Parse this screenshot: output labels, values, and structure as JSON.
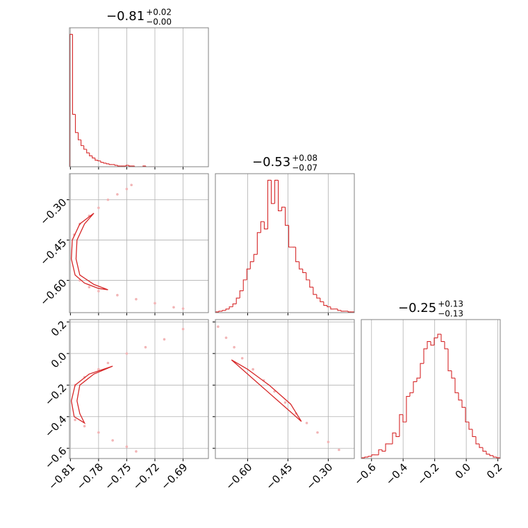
{
  "chart_data": {
    "type": "corner",
    "line_color": "#d62728",
    "point_color": "#f2b5b6",
    "frame_color": "#808080",
    "grid": true,
    "parameters": [
      {
        "title": {
          "value": "−0.81",
          "plus": "+0.02",
          "minus": "−0.00"
        },
        "lim": [
          -0.811,
          -0.663
        ],
        "ticks": [
          {
            "value": -0.81,
            "label": "−0.81"
          },
          {
            "value": -0.78,
            "label": "−0.78"
          },
          {
            "value": -0.75,
            "label": "−0.75"
          },
          {
            "value": -0.72,
            "label": "−0.72"
          },
          {
            "value": -0.69,
            "label": "−0.69"
          }
        ],
        "hist": {
          "ylim": [
            0,
            191
          ],
          "bins": [
            -0.8107,
            -0.8077,
            -0.8047,
            -0.8017,
            -0.7987,
            -0.7957,
            -0.7927,
            -0.7897,
            -0.7867,
            -0.7837,
            -0.7807,
            -0.7777,
            -0.7747,
            -0.7717,
            -0.7687,
            -0.7657,
            -0.7627,
            -0.7597,
            -0.7567,
            -0.7537,
            -0.7507,
            -0.7477,
            -0.7447,
            -0.7417,
            -0.7387,
            -0.7357,
            -0.7327,
            -0.7297,
            -0.7267,
            -0.7237,
            -0.7207
          ],
          "counts": [
            182,
            72,
            47,
            37,
            29,
            24,
            19,
            15,
            12,
            9,
            8,
            6,
            5,
            4,
            3,
            3,
            2,
            1,
            1,
            1,
            2,
            1,
            1,
            0,
            0,
            0,
            1,
            0,
            0,
            0
          ]
        }
      },
      {
        "title": {
          "value": "−0.53",
          "plus": "+0.08",
          "minus": "−0.07"
        },
        "lim": [
          -0.72,
          -0.203
        ],
        "ticks": [
          {
            "value": -0.6,
            "label": "−0.60"
          },
          {
            "value": -0.45,
            "label": "−0.45"
          },
          {
            "value": -0.3,
            "label": "−0.30"
          }
        ],
        "hist": {
          "ylim": [
            0,
            191
          ],
          "bins": [
            -0.72,
            -0.707,
            -0.694,
            -0.681,
            -0.668,
            -0.655,
            -0.642,
            -0.629,
            -0.616,
            -0.603,
            -0.59,
            -0.577,
            -0.564,
            -0.551,
            -0.538,
            -0.525,
            -0.512,
            -0.499,
            -0.486,
            -0.473,
            -0.46,
            -0.447,
            -0.434,
            -0.421,
            -0.408,
            -0.395,
            -0.382,
            -0.369,
            -0.356,
            -0.343,
            -0.33,
            -0.317,
            -0.304,
            -0.291,
            -0.278,
            -0.265,
            -0.252,
            -0.239,
            -0.226,
            -0.213,
            -0.2
          ],
          "counts": [
            1,
            2,
            3,
            5,
            8,
            12,
            20,
            30,
            45,
            60,
            70,
            80,
            110,
            125,
            115,
            182,
            150,
            182,
            140,
            145,
            120,
            90,
            90,
            70,
            60,
            55,
            45,
            35,
            25,
            20,
            15,
            10,
            8,
            5,
            5,
            3,
            2,
            2,
            1,
            1
          ]
        }
      },
      {
        "title": {
          "value": "−0.25",
          "plus": "+0.13",
          "minus": "−0.13"
        },
        "lim": [
          -0.665,
          0.215
        ],
        "ticks": [
          {
            "value": -0.6,
            "label": "−0.6"
          },
          {
            "value": -0.4,
            "label": "−0.4"
          },
          {
            "value": -0.2,
            "label": "−0.2"
          },
          {
            "value": 0,
            "label": "0.0"
          },
          0.2
        ],
        "hist": {
          "ylim": [
            0,
            190
          ],
          "bins": [
            -0.665,
            -0.643,
            -0.621,
            -0.599,
            -0.577,
            -0.555,
            -0.533,
            -0.511,
            -0.489,
            -0.467,
            -0.445,
            -0.423,
            -0.401,
            -0.379,
            -0.357,
            -0.335,
            -0.313,
            -0.291,
            -0.269,
            -0.247,
            -0.225,
            -0.203,
            -0.181,
            -0.159,
            -0.137,
            -0.115,
            -0.093,
            -0.071,
            -0.049,
            -0.027,
            -0.005,
            0.017,
            0.039,
            0.061,
            0.083,
            0.105,
            0.127,
            0.149,
            0.171,
            0.193,
            0.215
          ],
          "counts": [
            1,
            2,
            3,
            5,
            5,
            12,
            10,
            20,
            20,
            35,
            30,
            60,
            50,
            85,
            90,
            105,
            110,
            130,
            150,
            160,
            155,
            165,
            170,
            160,
            150,
            120,
            110,
            90,
            80,
            70,
            50,
            40,
            30,
            20,
            15,
            10,
            6,
            4,
            2,
            1
          ]
        }
      }
    ],
    "pairs": [
      {
        "x_param": 0,
        "y_param": 1,
        "x": [
          -0.806,
          -0.8,
          -0.79,
          -0.78,
          -0.77,
          -0.76,
          -0.75,
          -0.745,
          -0.8,
          -0.79,
          -0.78,
          -0.76,
          -0.74,
          -0.72,
          -0.7,
          -0.69
        ],
        "y": [
          -0.43,
          -0.39,
          -0.36,
          -0.33,
          -0.3,
          -0.28,
          -0.26,
          -0.245,
          -0.6,
          -0.625,
          -0.64,
          -0.655,
          -0.67,
          -0.685,
          -0.7,
          -0.705
        ],
        "contour_x": [
          -0.785,
          -0.8,
          -0.808,
          -0.809,
          -0.805,
          -0.795,
          -0.78,
          -0.77,
          -0.785,
          -0.8,
          -0.804,
          -0.803,
          -0.795,
          -0.785
        ],
        "contour_y": [
          -0.35,
          -0.39,
          -0.45,
          -0.52,
          -0.58,
          -0.61,
          -0.63,
          -0.635,
          -0.615,
          -0.58,
          -0.52,
          -0.45,
          -0.39,
          -0.35
        ]
      },
      {
        "x_param": 0,
        "y_param": 2,
        "x": [
          -0.805,
          -0.795,
          -0.78,
          -0.77,
          -0.75,
          -0.73,
          -0.71,
          -0.69,
          -0.805,
          -0.795,
          -0.78,
          -0.765,
          -0.75,
          -0.74
        ],
        "y": [
          -0.2,
          -0.15,
          -0.1,
          -0.06,
          0,
          0.04,
          0.09,
          0.155,
          -0.42,
          -0.46,
          -0.5,
          -0.55,
          -0.59,
          -0.62
        ],
        "contour_x": [
          -0.765,
          -0.79,
          -0.805,
          -0.809,
          -0.806,
          -0.795,
          -0.8,
          -0.803,
          -0.8,
          -0.785,
          -0.765
        ],
        "contour_y": [
          -0.08,
          -0.13,
          -0.2,
          -0.3,
          -0.4,
          -0.44,
          -0.38,
          -0.3,
          -0.2,
          -0.13,
          -0.08
        ]
      },
      {
        "x_param": 1,
        "y_param": 2,
        "x": [
          -0.71,
          -0.68,
          -0.65,
          -0.62,
          -0.58,
          -0.54,
          -0.5,
          -0.46,
          -0.42,
          -0.38,
          -0.34,
          -0.3,
          -0.26
        ],
        "y": [
          0.17,
          0.1,
          0.04,
          -0.03,
          -0.1,
          -0.17,
          -0.24,
          -0.31,
          -0.38,
          -0.44,
          -0.5,
          -0.56,
          -0.61
        ],
        "contour_x": [
          -0.66,
          -0.6,
          -0.52,
          -0.44,
          -0.4,
          -0.42,
          -0.5,
          -0.58,
          -0.64,
          -0.66
        ],
        "contour_y": [
          -0.04,
          -0.1,
          -0.2,
          -0.32,
          -0.43,
          -0.4,
          -0.28,
          -0.16,
          -0.07,
          -0.04
        ]
      }
    ]
  }
}
